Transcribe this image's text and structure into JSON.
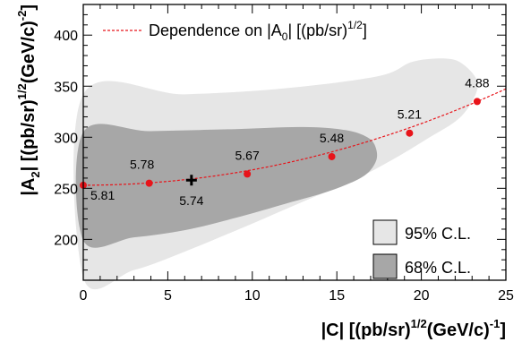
{
  "chart_data": {
    "type": "scatter",
    "title": "",
    "xlabel": {
      "main": "|C| [(pb/sr)",
      "sup1": "1/2",
      "mid": "(GeV/c)",
      "sup2": "-1",
      "end": "]"
    },
    "ylabel": {
      "main": "|A",
      "sub": "2",
      "mid1": "| [(pb/sr)",
      "sup1": "1/2",
      "mid2": "(GeV/c)",
      "sup2": "-2",
      "end": "]"
    },
    "xlim": [
      0,
      25
    ],
    "ylim": [
      160,
      430
    ],
    "x_ticks": [
      0,
      5,
      10,
      15,
      20,
      25
    ],
    "y_ticks": [
      200,
      250,
      300,
      350,
      400
    ],
    "grid": false,
    "legend_position": "top and bottom-right",
    "series": [
      {
        "name": "Dependence on |A0| [(pb/sr)1/2]",
        "name_parts": {
          "pre": "Dependence on |A",
          "sub": "0",
          "mid": "| [(pb/sr)",
          "sup": "1/2",
          "end": "]"
        },
        "color": "#e8141a",
        "style": "dashed line with markers",
        "points": [
          {
            "x": 0.0,
            "y": 253,
            "label": "5.81"
          },
          {
            "x": 3.9,
            "y": 255,
            "label": "5.78"
          },
          {
            "x": 9.7,
            "y": 264,
            "label": "5.67"
          },
          {
            "x": 14.7,
            "y": 281,
            "label": "5.48"
          },
          {
            "x": 19.3,
            "y": 304,
            "label": "5.21"
          },
          {
            "x": 23.3,
            "y": 335,
            "label": "4.88"
          }
        ]
      }
    ],
    "best_fit": {
      "x": 6.4,
      "y": 258,
      "label": "5.74",
      "marker": "cross"
    },
    "regions": [
      {
        "name": "95% C.L.",
        "color": "#e6e6e6",
        "outline": [
          [
            0,
            342
          ],
          [
            6,
            342
          ],
          [
            12,
            348
          ],
          [
            17.5,
            360
          ],
          [
            19.5,
            374
          ],
          [
            21.5,
            377
          ],
          [
            22.5,
            371
          ],
          [
            23.3,
            355
          ],
          [
            23.1,
            338
          ],
          [
            22.2,
            318
          ],
          [
            20.5,
            300
          ],
          [
            18.5,
            280
          ],
          [
            16,
            258
          ],
          [
            13,
            237
          ],
          [
            9.5,
            212
          ],
          [
            6,
            188
          ],
          [
            3,
            170
          ],
          [
            0,
            163
          ]
        ]
      },
      {
        "name": "68% C.L.",
        "color": "#a7a7a7",
        "outline": [
          [
            0,
            305
          ],
          [
            4,
            306
          ],
          [
            9,
            308
          ],
          [
            13,
            310
          ],
          [
            15.5,
            307
          ],
          [
            16.8,
            300
          ],
          [
            17.3,
            290
          ],
          [
            17.3,
            276
          ],
          [
            16.5,
            261
          ],
          [
            14.5,
            247
          ],
          [
            12,
            235
          ],
          [
            9,
            221
          ],
          [
            6,
            209
          ],
          [
            3,
            202
          ],
          [
            0,
            199
          ]
        ]
      }
    ]
  }
}
